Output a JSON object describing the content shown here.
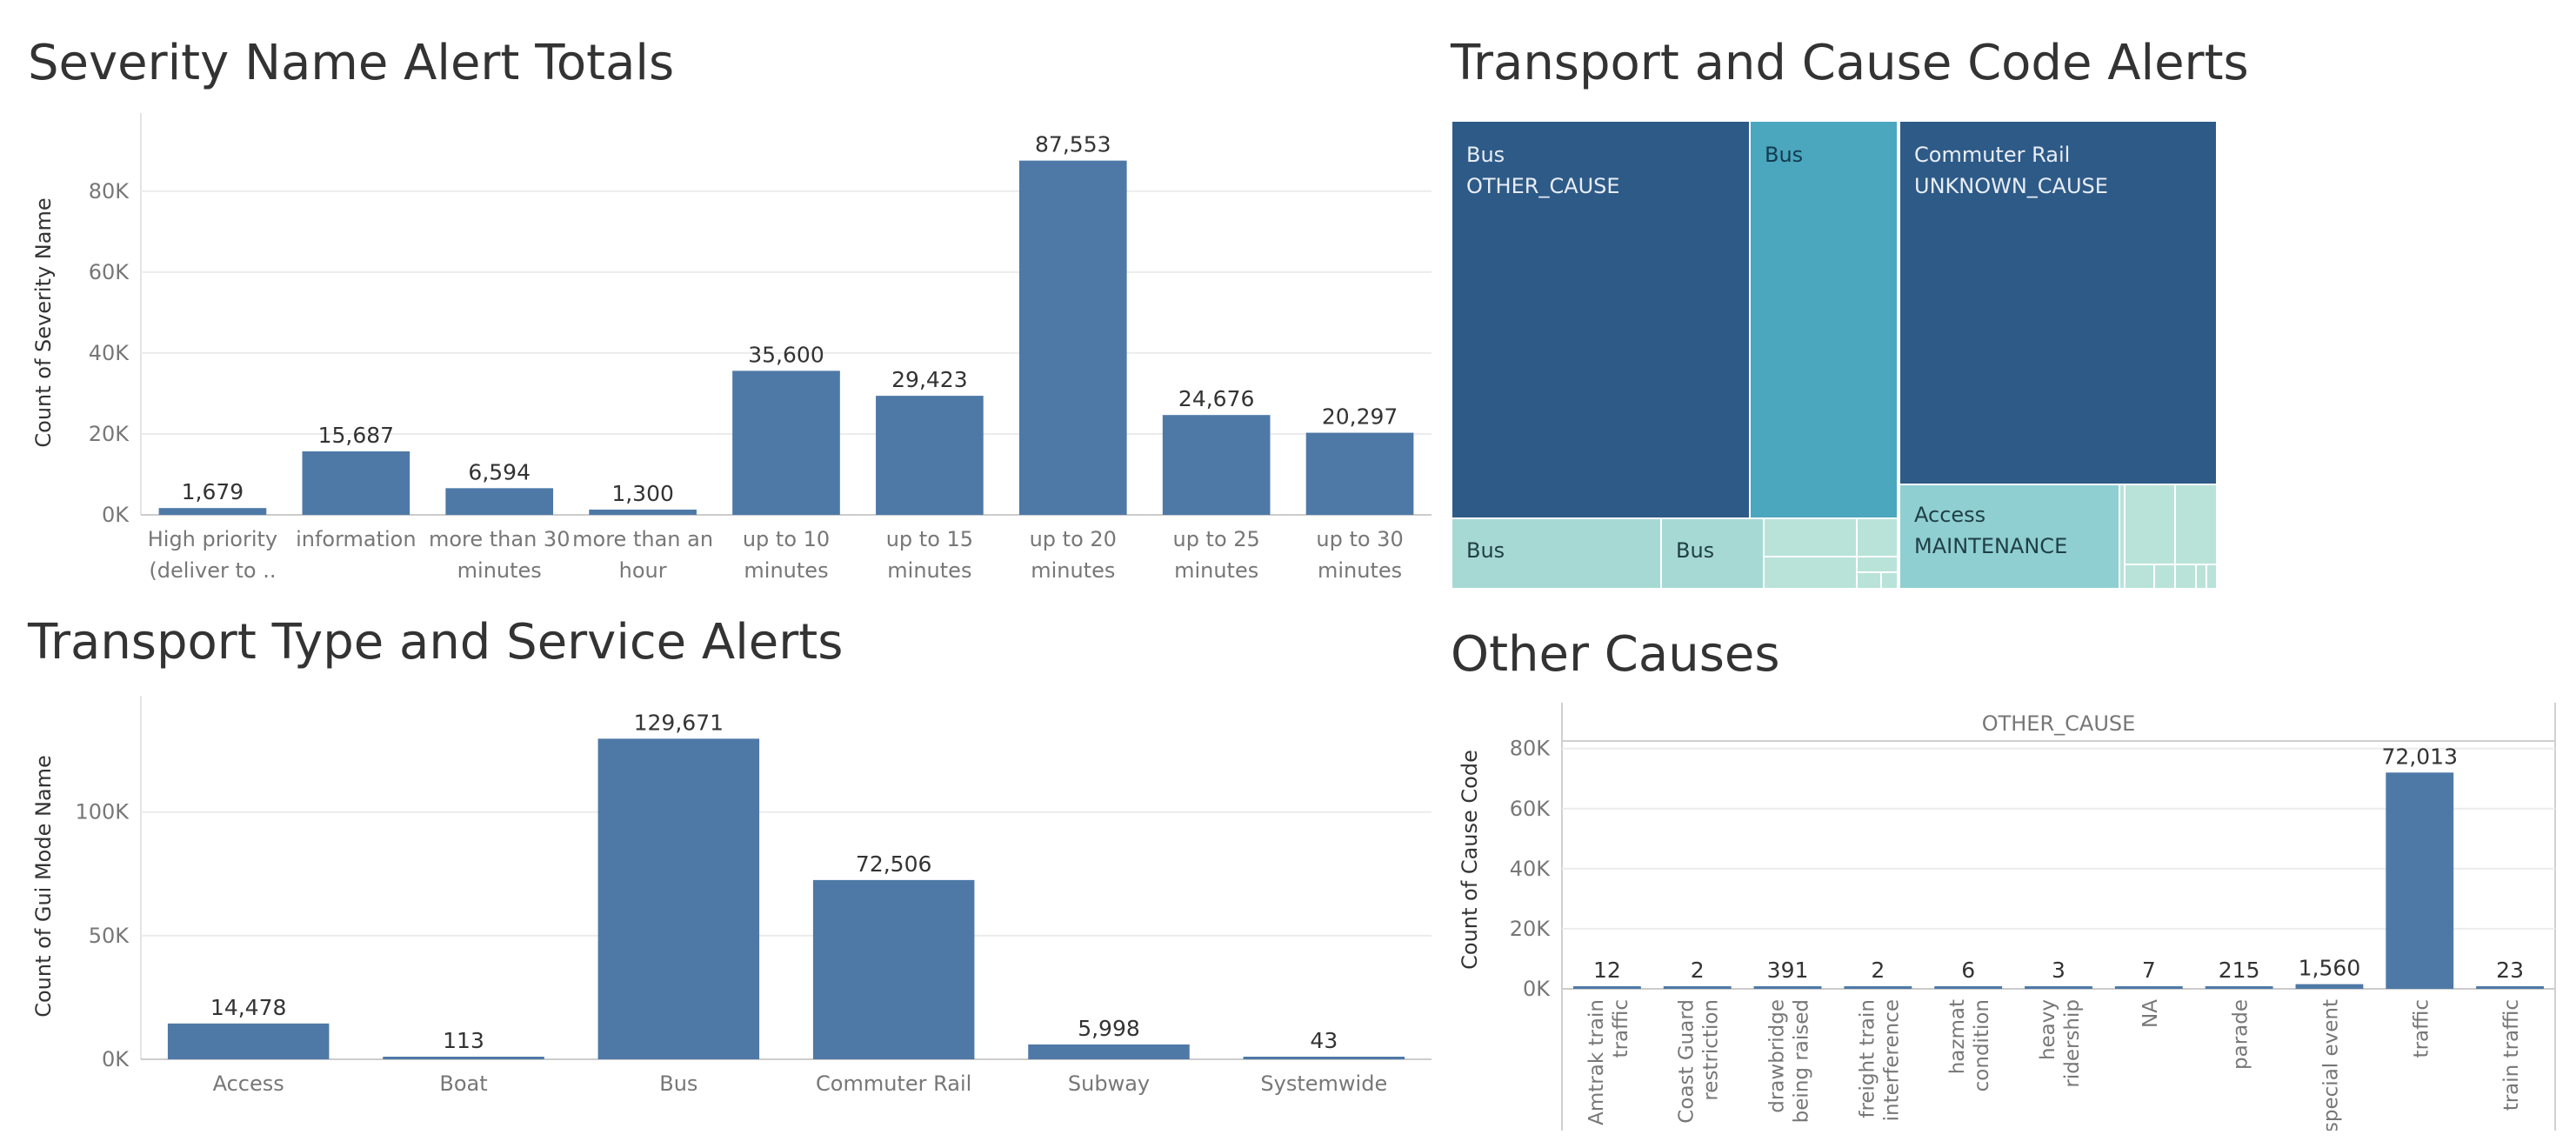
{
  "panels": {
    "severity": {
      "title": "Severity Name Alert Totals"
    },
    "treemap": {
      "title": "Transport and Cause Code Alerts"
    },
    "transport": {
      "title": "Transport Type and Service Alerts"
    },
    "other": {
      "title": "Other Causes"
    }
  },
  "colors": {
    "bar": "#4e79a7",
    "grid": "#ececec",
    "axis_text": "#777777",
    "value_text": "#333333",
    "treemap_dark": "#2e5a87",
    "treemap_teal": "#4aa7bd",
    "treemap_light_teal": "#8fcfd2",
    "treemap_pale": "#a7d9d4",
    "treemap_palest": "#b9e3d9"
  },
  "chart_data": [
    {
      "id": "severity",
      "type": "bar",
      "title": "Severity Name Alert Totals",
      "xlabel": "",
      "ylabel": "Count of Severity Name",
      "ylim": [
        0,
        95000
      ],
      "yticks": [
        0,
        20000,
        40000,
        60000,
        80000
      ],
      "ytick_labels": [
        "0K",
        "20K",
        "40K",
        "60K",
        "80K"
      ],
      "categories": [
        [
          "High priority",
          "(deliver to .."
        ],
        [
          "information"
        ],
        [
          "more than 30",
          "minutes"
        ],
        [
          "more than an",
          "hour"
        ],
        [
          "up to 10",
          "minutes"
        ],
        [
          "up to 15",
          "minutes"
        ],
        [
          "up to 20",
          "minutes"
        ],
        [
          "up to 25",
          "minutes"
        ],
        [
          "up to 30",
          "minutes"
        ]
      ],
      "values": [
        1679,
        15687,
        6594,
        1300,
        35600,
        29423,
        87553,
        24676,
        20297
      ],
      "value_labels": [
        "1,679",
        "15,687",
        "6,594",
        "1,300",
        "35,600",
        "29,423",
        "87,553",
        "24,676",
        "20,297"
      ],
      "grid": true
    },
    {
      "id": "transport",
      "type": "bar",
      "title": "Transport Type and Service Alerts",
      "xlabel": "",
      "ylabel": "Count of Gui Mode Name",
      "ylim": [
        0,
        140000
      ],
      "yticks": [
        0,
        50000,
        100000
      ],
      "ytick_labels": [
        "0K",
        "50K",
        "100K"
      ],
      "categories": [
        [
          "Access"
        ],
        [
          "Boat"
        ],
        [
          "Bus"
        ],
        [
          "Commuter Rail"
        ],
        [
          "Subway"
        ],
        [
          "Systemwide"
        ]
      ],
      "values": [
        14478,
        113,
        129671,
        72506,
        5998,
        43
      ],
      "value_labels": [
        "14,478",
        "113",
        "129,671",
        "72,506",
        "5,998",
        "43"
      ],
      "grid": true
    },
    {
      "id": "other",
      "type": "bar",
      "title": "Other Causes",
      "header": "OTHER_CAUSE",
      "xlabel": "",
      "ylabel": "Count of Cause Code",
      "ylim": [
        0,
        86000
      ],
      "yticks": [
        0,
        20000,
        40000,
        60000,
        80000
      ],
      "ytick_labels": [
        "0K",
        "20K",
        "40K",
        "60K",
        "80K"
      ],
      "categories": [
        [
          "Amtrak train",
          "traffic"
        ],
        [
          "Coast Guard",
          "restriction"
        ],
        [
          "drawbridge",
          "being raised"
        ],
        [
          "freight train",
          "interference"
        ],
        [
          "hazmat",
          "condition"
        ],
        [
          "heavy",
          "ridership"
        ],
        [
          "NA"
        ],
        [
          "parade"
        ],
        [
          "special event"
        ],
        [
          "traffic"
        ],
        [
          "train traffic"
        ]
      ],
      "values": [
        12,
        2,
        391,
        2,
        6,
        3,
        7,
        215,
        1560,
        72013,
        23
      ],
      "value_labels": [
        "12",
        "2",
        "391",
        "2",
        "6",
        "3",
        "7",
        "215",
        "1,560",
        "72,013",
        "23"
      ],
      "grid": true
    },
    {
      "id": "treemap",
      "type": "treemap",
      "title": "Transport and Cause Code Alerts",
      "labeled_cells": [
        {
          "mode": "Bus",
          "cause": "OTHER_CAUSE",
          "shade": "dark"
        },
        {
          "mode": "Bus",
          "cause": "",
          "shade": "teal"
        },
        {
          "mode": "Commuter Rail",
          "cause": "UNKNOWN_CAUSE",
          "shade": "dark"
        },
        {
          "mode": "Bus",
          "cause": "",
          "shade": "pale"
        },
        {
          "mode": "Bus",
          "cause": "",
          "shade": "pale"
        },
        {
          "mode": "Access",
          "cause": "MAINTENANCE",
          "shade": "light_teal"
        }
      ]
    }
  ]
}
